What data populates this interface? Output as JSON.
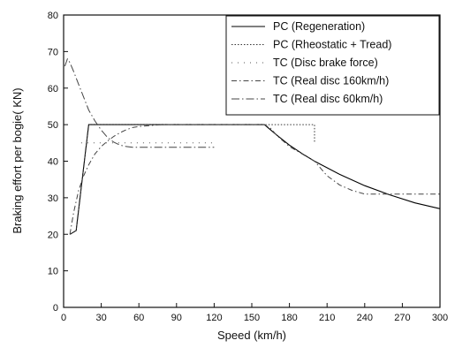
{
  "chart_data": {
    "type": "line",
    "title": "",
    "xlabel": "Speed (km/h)",
    "ylabel": "Braking effort per bogie( KN)",
    "xlim": [
      0,
      300
    ],
    "ylim": [
      0,
      80
    ],
    "xticks": [
      0,
      30,
      60,
      90,
      120,
      150,
      180,
      210,
      240,
      270,
      300
    ],
    "yticks": [
      0,
      10,
      20,
      30,
      40,
      50,
      60,
      70,
      80
    ],
    "grid": false,
    "legend_position": "top-right",
    "series": [
      {
        "name": "PC (Regeneration)",
        "style": "solid",
        "color": "#000000",
        "x": [
          5,
          10,
          20,
          160,
          170,
          180,
          190,
          200,
          220,
          240,
          260,
          280,
          300
        ],
        "y": [
          20,
          21,
          50,
          50,
          47.1,
          44.4,
          42.1,
          40,
          36.4,
          33.3,
          30.8,
          28.6,
          27
        ]
      },
      {
        "name": "PC (Rheostatic + Tread)",
        "style": "dotted",
        "color": "#333333",
        "x": [
          5,
          10,
          20,
          200,
          200
        ],
        "y": [
          20,
          21,
          50,
          50,
          45
        ]
      },
      {
        "name": "TC (Disc brake force)",
        "style": "sparse-dotted",
        "color": "#555555",
        "x": [
          14,
          20,
          30,
          40,
          50,
          55,
          60,
          90,
          120
        ],
        "y": [
          45,
          45,
          45,
          45,
          45,
          45,
          45,
          45,
          45
        ]
      },
      {
        "name": "TC (Real disc 160km/h)",
        "style": "dash-dot",
        "color": "#444444",
        "x": [
          5,
          8,
          12,
          16,
          20,
          25,
          30,
          35,
          40,
          45,
          50,
          55,
          60,
          70,
          80,
          90,
          120,
          150,
          160,
          165,
          170,
          180,
          190,
          200,
          210,
          220,
          230,
          240,
          260,
          280,
          300
        ],
        "y": [
          20,
          26,
          32,
          36,
          39,
          42,
          44,
          45.5,
          46.8,
          47.8,
          48.6,
          49.2,
          49.5,
          49.8,
          50,
          50,
          50,
          50,
          50,
          49,
          47,
          44,
          42,
          40,
          36,
          33.5,
          32,
          31,
          31,
          31,
          31
        ]
      },
      {
        "name": "TC (Real disc 60km/h)",
        "style": "long-dash-dot",
        "color": "#444444",
        "x": [
          1,
          3,
          5,
          8,
          12,
          16,
          20,
          25,
          30,
          35,
          40,
          45,
          50,
          55,
          60,
          70,
          80,
          90,
          100,
          110,
          120
        ],
        "y": [
          66,
          68,
          67,
          64.5,
          61,
          57.5,
          54,
          51,
          48.5,
          46.5,
          45.2,
          44.4,
          44,
          43.8,
          43.8,
          43.8,
          43.8,
          43.8,
          43.8,
          43.8,
          43.8
        ]
      }
    ]
  }
}
